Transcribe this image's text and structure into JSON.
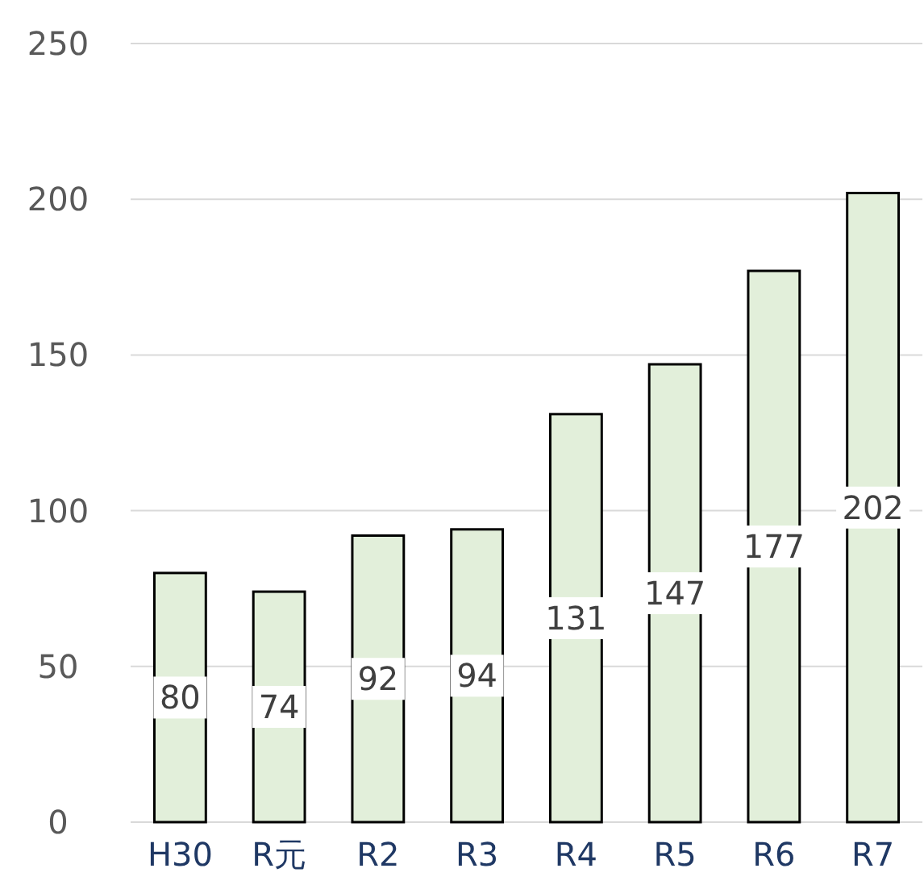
{
  "chart_data": {
    "type": "bar",
    "categories": [
      "H30",
      "R元",
      "R2",
      "R3",
      "R4",
      "R5",
      "R6",
      "R7"
    ],
    "values": [
      80,
      74,
      92,
      94,
      131,
      147,
      177,
      202
    ],
    "color": "#e2efda",
    "ylim": [
      0,
      250
    ],
    "yticks": [
      0,
      50,
      100,
      150,
      200,
      250
    ],
    "grid": "y",
    "data_labels": true
  }
}
